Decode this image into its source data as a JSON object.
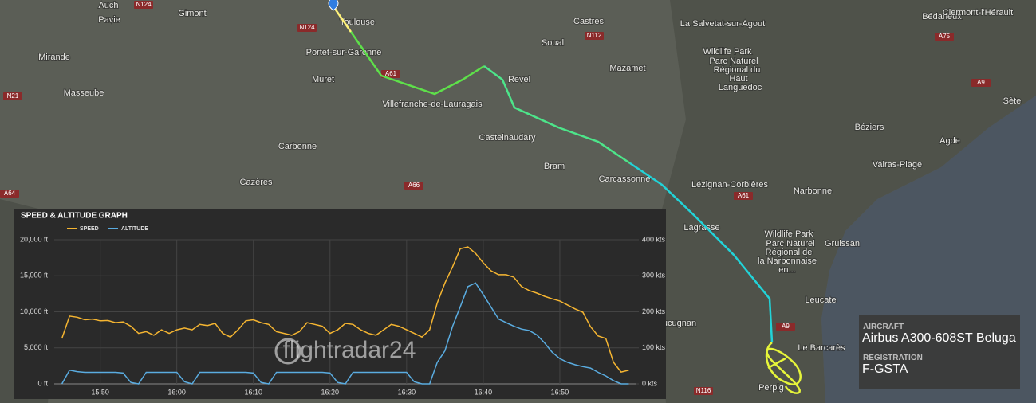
{
  "map": {
    "places": [
      "Auch",
      "Pavie",
      "Gimont",
      "Toulouse",
      "Castres",
      "Bédarieux",
      "Clermont-l'Hérault",
      "La Salvetat-sur-Agout",
      "Mirande",
      "Portet-sur-Garonne",
      "Soual",
      "Mazamet",
      "Wildlife Park",
      "Parc Naturel",
      "Régional du",
      "Haut",
      "Languedoc",
      "Muret",
      "Revel",
      "Masseube",
      "Villefranche-de-Lauragais",
      "Sète",
      "Béziers",
      "Castelnaudary",
      "Agde",
      "Carbonne",
      "Bram",
      "Valras-Plage",
      "Cazères",
      "Carcassonne",
      "Lézignan-Corbières",
      "Narbonne",
      "Gruissan",
      "Lagrasse",
      "Wildlife Park",
      "Parc Naturel",
      "Régional de",
      "la Narbonnaise",
      "en...",
      "Leucate",
      "Cucugnan",
      "Le Barcarès",
      "Perpig"
    ],
    "roads": [
      "N124",
      "N124",
      "A61",
      "N112",
      "A75",
      "A9",
      "N21",
      "A66",
      "A64",
      "A61",
      "A9",
      "N116"
    ]
  },
  "graph": {
    "title": "SPEED & ALTITUDE GRAPH",
    "watermark": "flightradar24",
    "x": [
      "15:45",
      "15:46",
      "15:47",
      "15:48",
      "15:49",
      "15:50",
      "15:51",
      "15:52",
      "15:53",
      "15:54",
      "15:55",
      "15:56",
      "15:57",
      "15:58",
      "15:59",
      "16:00",
      "16:01",
      "16:02",
      "16:03",
      "16:04",
      "16:05",
      "16:06",
      "16:07",
      "16:08",
      "16:09",
      "16:10",
      "16:11",
      "16:12",
      "16:13",
      "16:14",
      "16:15",
      "16:16",
      "16:17",
      "16:18",
      "16:19",
      "16:20",
      "16:21",
      "16:22",
      "16:23",
      "16:24",
      "16:25",
      "16:26",
      "16:27",
      "16:28",
      "16:29",
      "16:30",
      "16:31",
      "16:32",
      "16:33",
      "16:34",
      "16:35",
      "16:36",
      "16:37",
      "16:38",
      "16:39",
      "16:40",
      "16:41",
      "16:42",
      "16:43",
      "16:44",
      "16:45",
      "16:46",
      "16:47",
      "16:48",
      "16:49",
      "16:50",
      "16:51",
      "16:52",
      "16:53",
      "16:54",
      "16:55",
      "16:56",
      "16:57",
      "16:58",
      "16:59"
    ],
    "xlim": [
      "15:44",
      "17:00"
    ],
    "xticks": [
      "15:50",
      "16:00",
      "16:10",
      "16:20",
      "16:30",
      "16:40",
      "16:50"
    ],
    "ylim": [
      0,
      20000
    ],
    "yticks": [
      {
        "value": 0,
        "label": "0 ft"
      },
      {
        "value": 5000,
        "label": "5,000 ft"
      },
      {
        "value": 10000,
        "label": "10,000 ft"
      },
      {
        "value": 15000,
        "label": "15,000 ft"
      },
      {
        "value": 20000,
        "label": "20,000 ft"
      }
    ],
    "y2lim": [
      0,
      400
    ],
    "y2ticks": [
      {
        "value": 0,
        "label": "0 kts"
      },
      {
        "value": 100,
        "label": "100 kts"
      },
      {
        "value": 200,
        "label": "200 kts"
      },
      {
        "value": 300,
        "label": "300 kts"
      },
      {
        "value": 400,
        "label": "400 kts"
      }
    ],
    "grid": true,
    "series": [
      {
        "name": "SPEED",
        "color": "#f5b531",
        "axis": "y2",
        "values": [
          126,
          188,
          185,
          178,
          180,
          175,
          176,
          170,
          172,
          160,
          140,
          145,
          135,
          150,
          140,
          150,
          155,
          150,
          165,
          162,
          168,
          140,
          130,
          150,
          175,
          178,
          170,
          165,
          145,
          140,
          135,
          145,
          170,
          165,
          160,
          140,
          150,
          168,
          165,
          150,
          140,
          135,
          150,
          165,
          160,
          150,
          140,
          130,
          150,
          225,
          280,
          325,
          375,
          380,
          362,
          336,
          314,
          303,
          303,
          296,
          270,
          259,
          252,
          243,
          236,
          230,
          219,
          208,
          199,
          159,
          133,
          126,
          60,
          33,
          38
        ]
      },
      {
        "name": "ALTITUDE",
        "color": "#5aace0",
        "values": [
          0,
          1900,
          1700,
          1600,
          1600,
          1600,
          1600,
          1600,
          1500,
          200,
          0,
          1600,
          1600,
          1600,
          1600,
          1600,
          300,
          0,
          1600,
          1600,
          1600,
          1600,
          1600,
          1600,
          1600,
          1500,
          200,
          0,
          1600,
          1600,
          1600,
          1600,
          1600,
          1600,
          1600,
          1500,
          200,
          0,
          1600,
          1600,
          1600,
          1600,
          1600,
          1600,
          1600,
          1600,
          300,
          0,
          0,
          3000,
          4600,
          8000,
          10700,
          13500,
          14000,
          12400,
          10700,
          9000,
          8500,
          8000,
          7600,
          7400,
          6800,
          5700,
          4400,
          3500,
          3000,
          2650,
          2400,
          2200,
          1600,
          1100,
          450,
          0,
          0
        ]
      }
    ]
  },
  "info_panel": {
    "aircraft_label": "AIRCRAFT",
    "aircraft": "Airbus A300-608ST Beluga",
    "registration_label": "REGISTRATION",
    "registration": "F-GSTA"
  }
}
